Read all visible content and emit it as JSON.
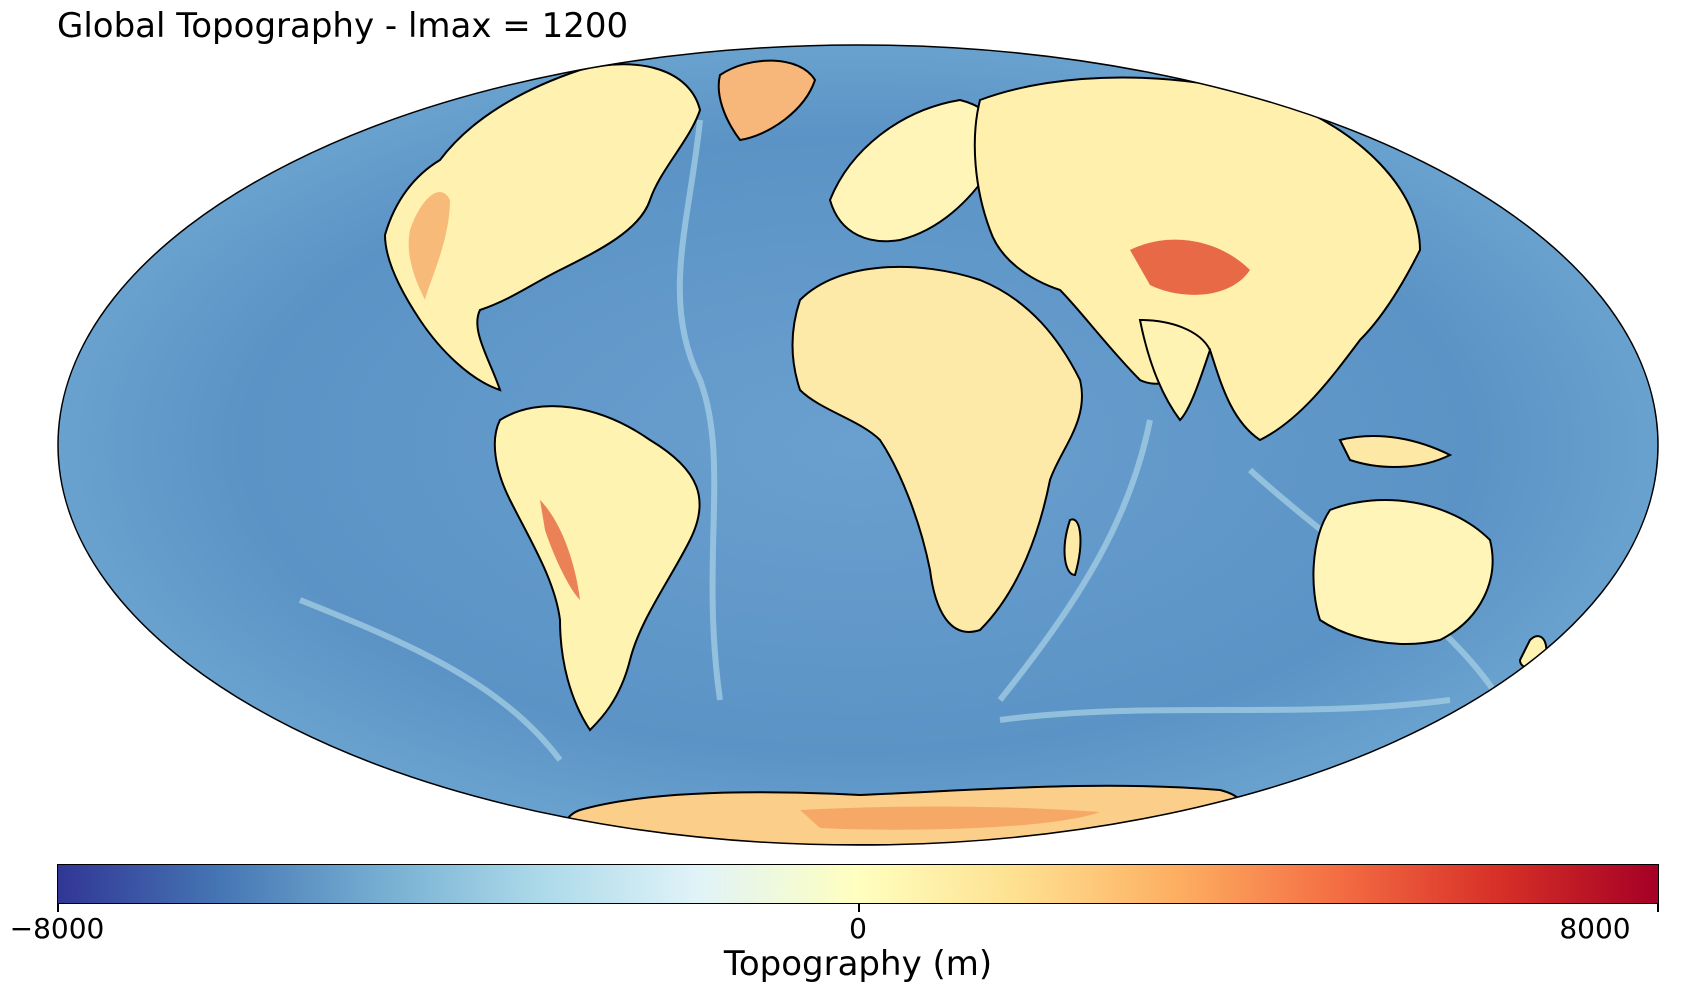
{
  "title": "Global Topography - lmax = 1200",
  "colorbar": {
    "label": "Topography (m)",
    "ticks": [
      "−8000",
      "0",
      "8000"
    ],
    "range": [
      -8000,
      8000
    ],
    "colormap": [
      "#313695",
      "#4575b4",
      "#74add1",
      "#abd9e9",
      "#e0f3f8",
      "#ffffbf",
      "#fee090",
      "#fdae61",
      "#f46d43",
      "#d73027",
      "#a50026"
    ]
  },
  "map": {
    "projection": "Mollweide",
    "coastlines": true,
    "ocean_color": "#5b93c6",
    "shelf_color": "#bfe3ee",
    "land_color": "#fff6ba",
    "highland_color": "#f9b874",
    "peak_color": "#e55a3a"
  }
}
